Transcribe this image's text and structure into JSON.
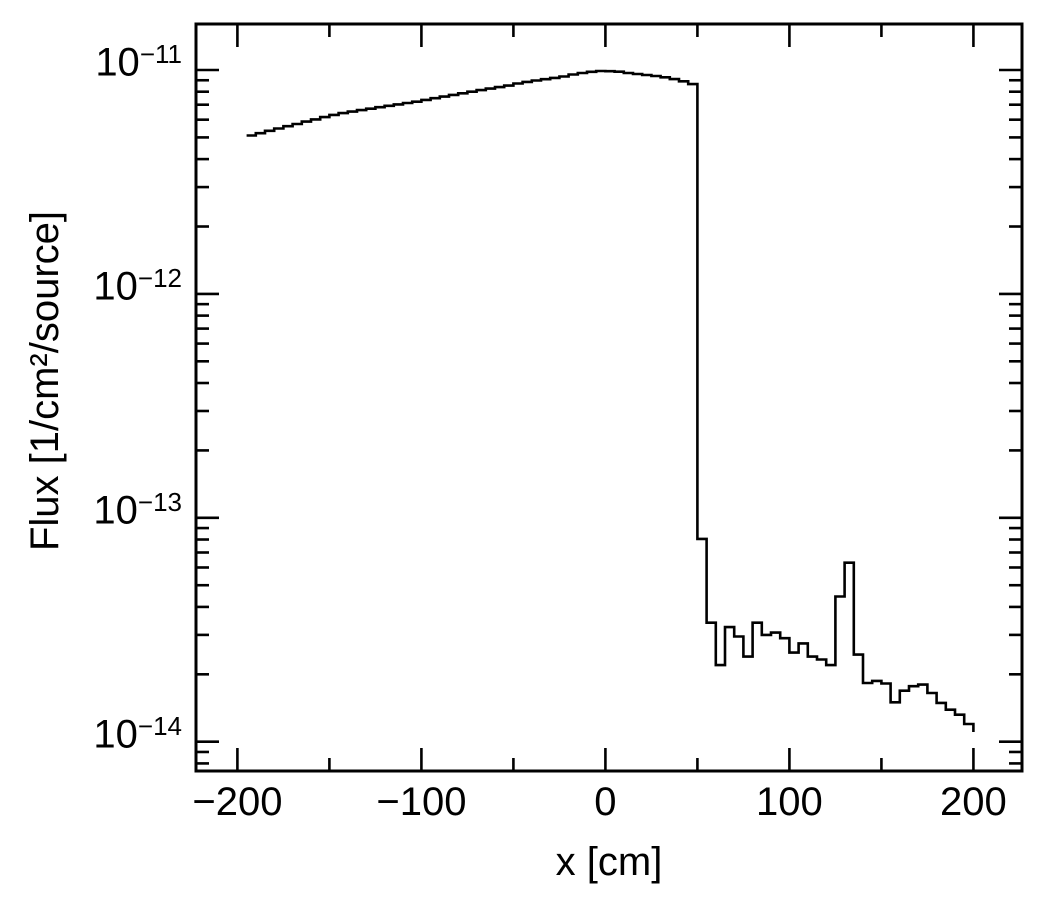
{
  "figure": {
    "background_color": "#ffffff",
    "axis_color": "#000000",
    "curve_color": "#000000",
    "text_color": "#000000"
  },
  "chart_data": {
    "type": "step-histogram",
    "title": "",
    "xlabel": "x [cm]",
    "ylabel": "Flux [1/cm²/source]",
    "yscale": "log",
    "grid": false,
    "legend": null,
    "xlim": [
      -222.5,
      226.4
    ],
    "ylim": [
      7.4e-15,
      1.605e-11
    ],
    "bin_width_cm": 5,
    "x_major_ticks": [
      {
        "value": -200,
        "label": "−200"
      },
      {
        "value": -100,
        "label": "−100"
      },
      {
        "value": 0,
        "label": "0"
      },
      {
        "value": 100,
        "label": "100"
      },
      {
        "value": 200,
        "label": "200"
      }
    ],
    "x_minor_ticks": [
      -150,
      -50,
      50,
      150
    ],
    "y_major_ticks": [
      {
        "value": 1e-11,
        "base": "10",
        "exp": "−11"
      },
      {
        "value": 1e-12,
        "base": "10",
        "exp": "−12"
      },
      {
        "value": 1e-13,
        "base": "10",
        "exp": "−13"
      },
      {
        "value": 1e-14,
        "base": "10",
        "exp": "−14"
      }
    ],
    "y_minor_decades": [
      -12,
      -13,
      -14,
      -15
    ],
    "y_minor_mantissas": [
      2,
      3,
      4,
      5,
      6,
      7,
      8,
      9
    ],
    "bin_edges": [
      -195,
      -190,
      -185,
      -180,
      -175,
      -170,
      -165,
      -160,
      -155,
      -150,
      -145,
      -140,
      -135,
      -130,
      -125,
      -120,
      -115,
      -110,
      -105,
      -100,
      -95,
      -90,
      -85,
      -80,
      -75,
      -70,
      -65,
      -60,
      -55,
      -50,
      -45,
      -40,
      -35,
      -30,
      -25,
      -20,
      -15,
      -10,
      -5,
      0,
      5,
      10,
      15,
      20,
      25,
      30,
      35,
      40,
      45,
      50,
      55,
      60,
      65,
      70,
      75,
      80,
      85,
      90,
      95,
      100,
      105,
      110,
      115,
      120,
      125,
      130,
      135,
      140,
      145,
      150,
      155,
      160,
      165,
      170,
      175,
      180,
      185,
      190,
      195,
      200
    ],
    "values": [
      5.1e-12,
      5.22e-12,
      5.35e-12,
      5.48e-12,
      5.61e-12,
      5.74e-12,
      5.88e-12,
      6.02e-12,
      6.16e-12,
      6.3e-12,
      6.42e-12,
      6.52e-12,
      6.62e-12,
      6.72e-12,
      6.82e-12,
      6.92e-12,
      7.02e-12,
      7.12e-12,
      7.22e-12,
      7.35e-12,
      7.48e-12,
      7.61e-12,
      7.74e-12,
      7.87e-12,
      8e-12,
      8.13e-12,
      8.26e-12,
      8.39e-12,
      8.52e-12,
      8.7e-12,
      8.85e-12,
      8.98e-12,
      9.1e-12,
      9.22e-12,
      9.35e-12,
      9.55e-12,
      9.7e-12,
      9.82e-12,
      9.9e-12,
      9.88e-12,
      9.83e-12,
      9.7e-12,
      9.6e-12,
      9.5e-12,
      9.4e-12,
      9.28e-12,
      9.11e-12,
      8.9e-12,
      8.65e-12,
      8.05e-14,
      3.4e-14,
      2.2e-14,
      3.25e-14,
      2.95e-14,
      2.4e-14,
      3.4e-14,
      3e-14,
      3.07e-14,
      2.9e-14,
      2.5e-14,
      2.75e-14,
      2.4e-14,
      2.33e-14,
      2.2e-14,
      4.45e-14,
      6.3e-14,
      2.45e-14,
      1.83e-14,
      1.87e-14,
      1.82e-14,
      1.5e-14,
      1.69e-14,
      1.77e-14,
      1.8e-14,
      1.65e-14,
      1.49e-14,
      1.39e-14,
      1.32e-14,
      1.2e-14
    ]
  }
}
